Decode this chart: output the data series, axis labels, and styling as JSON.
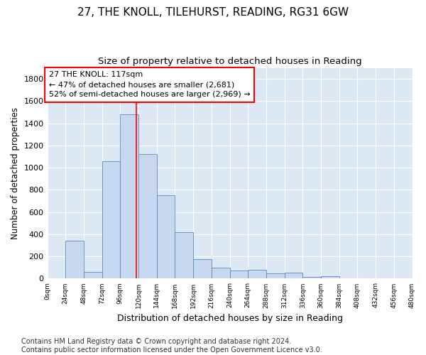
{
  "title_line1": "27, THE KNOLL, TILEHURST, READING, RG31 6GW",
  "title_line2": "Size of property relative to detached houses in Reading",
  "xlabel": "Distribution of detached houses by size in Reading",
  "ylabel": "Number of detached properties",
  "bar_color": "#c8d8f0",
  "bar_edge_color": "#5a8ab8",
  "background_color": "#dde8f5",
  "grid_color": "white",
  "annotation_text": "27 THE KNOLL: 117sqm\n← 47% of detached houses are smaller (2,681)\n52% of semi-detached houses are larger (2,969) →",
  "vline_x": 117,
  "vline_color": "red",
  "bin_edges": [
    0,
    24,
    48,
    72,
    96,
    120,
    144,
    168,
    192,
    216,
    240,
    264,
    288,
    312,
    336,
    360,
    384,
    408,
    432,
    456,
    480
  ],
  "bar_heights": [
    5,
    340,
    60,
    1060,
    1480,
    1120,
    750,
    420,
    175,
    100,
    75,
    80,
    50,
    55,
    15,
    20,
    5,
    0,
    0,
    0
  ],
  "ylim": [
    0,
    1900
  ],
  "yticks": [
    0,
    200,
    400,
    600,
    800,
    1000,
    1200,
    1400,
    1600,
    1800
  ],
  "footnote": "Contains HM Land Registry data © Crown copyright and database right 2024.\nContains public sector information licensed under the Open Government Licence v3.0.",
  "footnote_fontsize": 7,
  "title_fontsize": 11,
  "subtitle_fontsize": 9.5,
  "xlabel_fontsize": 9,
  "ylabel_fontsize": 8.5,
  "annot_fontsize": 8
}
